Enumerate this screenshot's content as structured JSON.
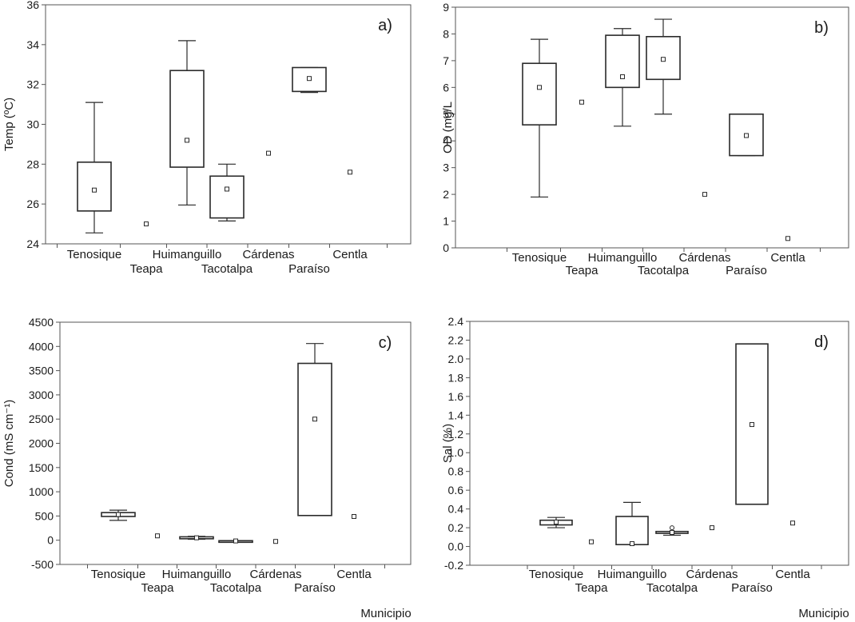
{
  "municipios": [
    "Tenosique",
    "Teapa",
    "Huimanguillo",
    "Tacotalpa",
    "Cárdenas",
    "Paraíso",
    "Centla"
  ],
  "xlabel": "Municipio",
  "chart_data": [
    {
      "type": "boxplot",
      "panel_label": "a)",
      "ylabel": "Temp (ºC)",
      "ylim": [
        24,
        36
      ],
      "yticks": [
        24,
        26,
        28,
        30,
        32,
        34,
        36
      ],
      "categories": [
        "Tenosique",
        "Teapa",
        "Huimanguillo",
        "Tacotalpa",
        "Cárdenas",
        "Paraíso",
        "Centla"
      ],
      "boxes": [
        {
          "median": 26.7,
          "q1": 25.65,
          "q3": 28.1,
          "min": 24.55,
          "max": 31.1
        },
        {
          "median": 25.0,
          "q1": null,
          "q3": null,
          "min": null,
          "max": null
        },
        {
          "median": 29.2,
          "q1": 27.85,
          "q3": 32.7,
          "min": 25.95,
          "max": 34.2
        },
        {
          "median": 26.75,
          "q1": 25.3,
          "q3": 27.4,
          "min": 25.15,
          "max": 28.0
        },
        {
          "median": 28.55,
          "q1": null,
          "q3": null,
          "min": null,
          "max": null
        },
        {
          "median": 32.3,
          "q1": 31.65,
          "q3": 32.85,
          "min": 31.6,
          "max": 32.85
        },
        {
          "median": 27.6,
          "q1": null,
          "q3": null,
          "min": null,
          "max": null
        }
      ]
    },
    {
      "type": "boxplot",
      "panel_label": "b)",
      "ylabel": "OD (mg/L",
      "ylim": [
        0,
        9
      ],
      "yticks": [
        0,
        1,
        2,
        3,
        4,
        5,
        6,
        7,
        8,
        9
      ],
      "categories": [
        "Tenosique",
        "Teapa",
        "Huimanguillo",
        "Tacotalpa",
        "Cárdenas",
        "Paraíso",
        "Centla"
      ],
      "boxes": [
        {
          "median": 6.0,
          "q1": 4.6,
          "q3": 6.9,
          "min": 1.9,
          "max": 7.8
        },
        {
          "median": 5.45,
          "q1": null,
          "q3": null,
          "min": null,
          "max": null
        },
        {
          "median": 6.4,
          "q1": 6.0,
          "q3": 7.95,
          "min": 4.55,
          "max": 8.2
        },
        {
          "median": 7.05,
          "q1": 6.3,
          "q3": 7.9,
          "min": 5.0,
          "max": 8.55
        },
        {
          "median": 2.0,
          "q1": null,
          "q3": null,
          "min": null,
          "max": null
        },
        {
          "median": 4.2,
          "q1": 3.45,
          "q3": 5.0,
          "min": 3.45,
          "max": 5.0
        },
        {
          "median": 0.35,
          "q1": null,
          "q3": null,
          "min": null,
          "max": null
        }
      ]
    },
    {
      "type": "boxplot",
      "panel_label": "c)",
      "ylabel": "Cond (mS cm⁻¹)",
      "ylim": [
        -500,
        4500
      ],
      "yticks": [
        -500,
        0,
        500,
        1000,
        1500,
        2000,
        2500,
        3000,
        3500,
        4000,
        4500
      ],
      "categories": [
        "Tenosique",
        "Teapa",
        "Huimanguillo",
        "Tacotalpa",
        "Cárdenas",
        "Paraíso",
        "Centla"
      ],
      "boxes": [
        {
          "median": 530,
          "q1": 490,
          "q3": 570,
          "min": 410,
          "max": 620
        },
        {
          "median": 90,
          "q1": null,
          "q3": null,
          "min": null,
          "max": null
        },
        {
          "median": 50,
          "q1": 30,
          "q3": 70,
          "min": 20,
          "max": 80
        },
        {
          "median": -15,
          "q1": -20,
          "q3": -10,
          "min": -20,
          "max": -10
        },
        {
          "median": -25,
          "q1": null,
          "q3": null,
          "min": null,
          "max": null
        },
        {
          "median": 2500,
          "q1": 510,
          "q3": 3650,
          "min": 510,
          "max": 4060
        },
        {
          "median": 490,
          "q1": null,
          "q3": null,
          "min": null,
          "max": null
        }
      ]
    },
    {
      "type": "boxplot",
      "panel_label": "d)",
      "ylabel": "Sal (%)",
      "ylim": [
        -0.2,
        2.4
      ],
      "yticks": [
        -0.2,
        0.0,
        0.2,
        0.4,
        0.6,
        0.8,
        1.0,
        1.2,
        1.4,
        1.6,
        1.8,
        2.0,
        2.2,
        2.4
      ],
      "categories": [
        "Tenosique",
        "Teapa",
        "Huimanguillo",
        "Tacotalpa",
        "Cárdenas",
        "Paraíso",
        "Centla"
      ],
      "boxes": [
        {
          "median": 0.26,
          "q1": 0.23,
          "q3": 0.28,
          "min": 0.2,
          "max": 0.31
        },
        {
          "median": 0.05,
          "q1": null,
          "q3": null,
          "min": null,
          "max": null
        },
        {
          "median": 0.03,
          "q1": 0.02,
          "q3": 0.32,
          "min": 0.02,
          "max": 0.47
        },
        {
          "median": 0.15,
          "q1": 0.14,
          "q3": 0.16,
          "min": 0.12,
          "max": 0.16,
          "outlier": 0.2
        },
        {
          "median": 0.2,
          "q1": null,
          "q3": null,
          "min": null,
          "max": null
        },
        {
          "median": 1.3,
          "q1": 0.45,
          "q3": 2.16,
          "min": 0.45,
          "max": 2.16
        },
        {
          "median": 0.25,
          "q1": null,
          "q3": null,
          "min": null,
          "max": null
        }
      ]
    }
  ]
}
